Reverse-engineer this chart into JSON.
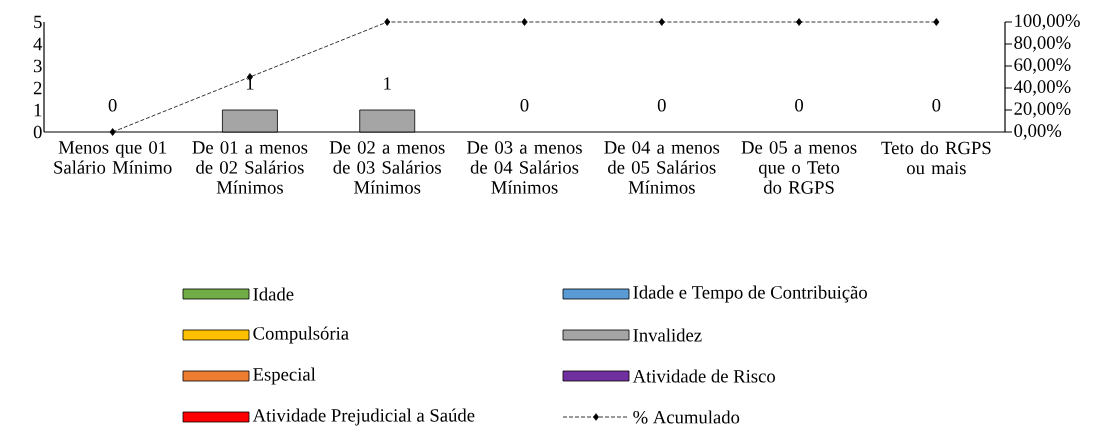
{
  "chart_data": {
    "type": "bar",
    "stacked": true,
    "legend": "bottom",
    "marker": "diamond",
    "line_style": "dashed",
    "categories": [
      "Menos que 01 Salário Mínimo",
      "De 01 a menos de 02 Salários Mínimos",
      "De 02 a menos de 03 Salários Mínimos",
      "De 03 a menos de 04 Salários Mínimos",
      "De 04 a menos de 05 Salários Mínimos",
      "De 05 a menos que o Teto do RGPS",
      "Teto do RGPS ou mais"
    ],
    "series": [
      {
        "name": "Idade",
        "color": "#70ad47",
        "values": [
          0,
          0,
          0,
          0,
          0,
          0,
          0
        ]
      },
      {
        "name": "Idade e Tempo de Contribuição",
        "color": "#5b9bd5",
        "values": [
          0,
          0,
          0,
          0,
          0,
          0,
          0
        ]
      },
      {
        "name": "Compulsória",
        "color": "#ffc000",
        "values": [
          0,
          0,
          0,
          0,
          0,
          0,
          0
        ]
      },
      {
        "name": "Invalidez",
        "color": "#a5a5a5",
        "values": [
          0,
          1,
          1,
          0,
          0,
          0,
          0
        ]
      },
      {
        "name": "Especial",
        "color": "#ed7d31",
        "values": [
          0,
          0,
          0,
          0,
          0,
          0,
          0
        ]
      },
      {
        "name": "Atividade de Risco",
        "color": "#7030a0",
        "values": [
          0,
          0,
          0,
          0,
          0,
          0,
          0
        ]
      },
      {
        "name": "Atividade Prejudicial a Saúde",
        "color": "#ff0000",
        "values": [
          0,
          0,
          0,
          0,
          0,
          0,
          0
        ]
      },
      {
        "name": "% Acumulado",
        "type": "line",
        "axis": "y2",
        "color": "#000000",
        "values": [
          0,
          50,
          100,
          100,
          100,
          100,
          100
        ]
      }
    ],
    "totals": [
      "0",
      "1",
      "1",
      "0",
      "0",
      "0",
      "0"
    ],
    "ylim": [
      0,
      5
    ],
    "yticks": [
      0,
      1,
      2,
      3,
      4,
      5
    ],
    "y2lim": [
      0,
      100
    ],
    "y2ticks": [
      {
        "value": 0,
        "label": "0,00%"
      },
      {
        "value": 20,
        "label": "20,00%"
      },
      {
        "value": 40,
        "label": "40,00%"
      },
      {
        "value": 60,
        "label": "60,00%"
      },
      {
        "value": 80,
        "label": "80,00%"
      },
      {
        "value": 100,
        "label": "100,00%"
      }
    ]
  }
}
